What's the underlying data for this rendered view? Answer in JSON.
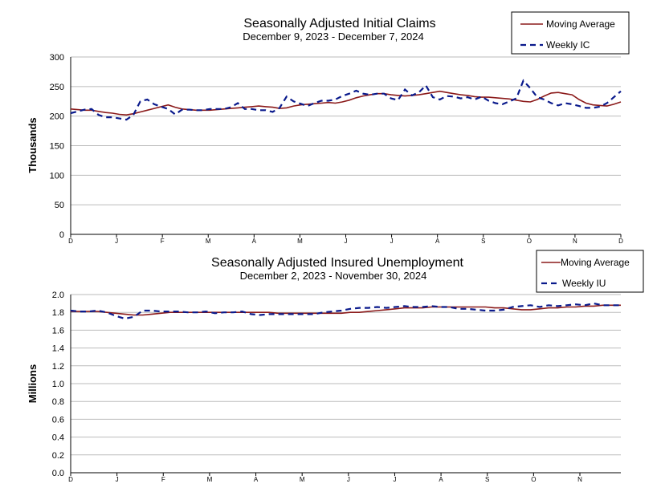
{
  "colors": {
    "moving_average": "#8B1A1A",
    "weekly": "#0A1A8C",
    "grid": "#BBBBBB",
    "axis": "#000000"
  },
  "chart_data": [
    {
      "type": "line",
      "title": "Seasonally Adjusted Initial Claims",
      "subtitle": "December 9, 2023 - December 7, 2024",
      "ylabel": "Thousands",
      "ylim": [
        0,
        300
      ],
      "yticks": [
        "0",
        "50",
        "100",
        "150",
        "200",
        "250",
        "300"
      ],
      "grid": true,
      "legend_position": "top-right",
      "x_ticks": [
        "D",
        "J",
        "F",
        "M",
        "A",
        "M",
        "J",
        "J",
        "A",
        "S",
        "O",
        "N",
        "D"
      ],
      "series": [
        {
          "name": "Moving Average",
          "style": "solid",
          "values": [
            212,
            211,
            210,
            210,
            208,
            206,
            205,
            203,
            202,
            204,
            207,
            210,
            213,
            216,
            219,
            215,
            212,
            211,
            210,
            210,
            210,
            211,
            212,
            213,
            214,
            215,
            216,
            217,
            216,
            215,
            213,
            214,
            217,
            219,
            220,
            221,
            222,
            223,
            222,
            224,
            227,
            231,
            234,
            236,
            238,
            238,
            236,
            235,
            234,
            235,
            236,
            238,
            240,
            242,
            240,
            238,
            236,
            235,
            233,
            232,
            232,
            231,
            230,
            229,
            227,
            225,
            224,
            228,
            234,
            239,
            240,
            238,
            236,
            228,
            222,
            219,
            218,
            217,
            220,
            224
          ]
        },
        {
          "name": "Weekly IC",
          "style": "dashed",
          "values": [
            205,
            208,
            211,
            212,
            202,
            198,
            198,
            196,
            194,
            202,
            225,
            228,
            220,
            216,
            212,
            203,
            211,
            211,
            210,
            210,
            212,
            212,
            212,
            215,
            222,
            212,
            212,
            210,
            210,
            207,
            214,
            233,
            225,
            221,
            217,
            222,
            226,
            226,
            228,
            234,
            238,
            243,
            238,
            236,
            238,
            238,
            230,
            227,
            245,
            235,
            240,
            252,
            232,
            228,
            234,
            233,
            230,
            232,
            228,
            233,
            226,
            222,
            220,
            225,
            230,
            260,
            247,
            232,
            228,
            222,
            218,
            222,
            220,
            217,
            214,
            214,
            216,
            222,
            232,
            242
          ]
        }
      ]
    },
    {
      "type": "line",
      "title": "Seasonally Adjusted Insured Unemployment",
      "subtitle": "December 2, 2023 - November 30, 2024",
      "ylabel": "Millions",
      "ylim": [
        0.0,
        2.0
      ],
      "yticks": [
        "0.0",
        "0.2",
        "0.4",
        "0.6",
        "0.8",
        "1.0",
        "1.2",
        "1.4",
        "1.6",
        "1.8",
        "2.0"
      ],
      "grid": true,
      "legend_position": "top-right",
      "x_ticks": [
        "D",
        "J",
        "F",
        "M",
        "A",
        "M",
        "J",
        "J",
        "A",
        "S",
        "O",
        "N"
      ],
      "series": [
        {
          "name": "Moving Average",
          "style": "solid",
          "values": [
            1.81,
            1.81,
            1.81,
            1.81,
            1.8,
            1.79,
            1.78,
            1.77,
            1.77,
            1.78,
            1.79,
            1.8,
            1.8,
            1.8,
            1.8,
            1.8,
            1.8,
            1.8,
            1.8,
            1.8,
            1.8,
            1.8,
            1.8,
            1.79,
            1.79,
            1.79,
            1.79,
            1.79,
            1.79,
            1.79,
            1.79,
            1.8,
            1.8,
            1.81,
            1.82,
            1.83,
            1.84,
            1.85,
            1.85,
            1.85,
            1.86,
            1.86,
            1.86,
            1.86,
            1.86,
            1.86,
            1.86,
            1.85,
            1.85,
            1.84,
            1.83,
            1.83,
            1.84,
            1.85,
            1.85,
            1.86,
            1.86,
            1.87,
            1.87,
            1.88,
            1.88,
            1.88
          ]
        },
        {
          "name": "Weekly IU",
          "style": "dashed",
          "values": [
            1.82,
            1.81,
            1.81,
            1.82,
            1.8,
            1.76,
            1.73,
            1.75,
            1.82,
            1.82,
            1.81,
            1.81,
            1.81,
            1.8,
            1.8,
            1.81,
            1.79,
            1.8,
            1.8,
            1.81,
            1.78,
            1.77,
            1.78,
            1.78,
            1.78,
            1.78,
            1.78,
            1.78,
            1.8,
            1.81,
            1.82,
            1.84,
            1.85,
            1.85,
            1.86,
            1.85,
            1.86,
            1.87,
            1.86,
            1.86,
            1.87,
            1.86,
            1.86,
            1.84,
            1.84,
            1.83,
            1.82,
            1.82,
            1.83,
            1.86,
            1.87,
            1.88,
            1.86,
            1.88,
            1.87,
            1.88,
            1.89,
            1.88,
            1.9,
            1.88,
            1.88,
            1.88
          ]
        }
      ]
    }
  ]
}
